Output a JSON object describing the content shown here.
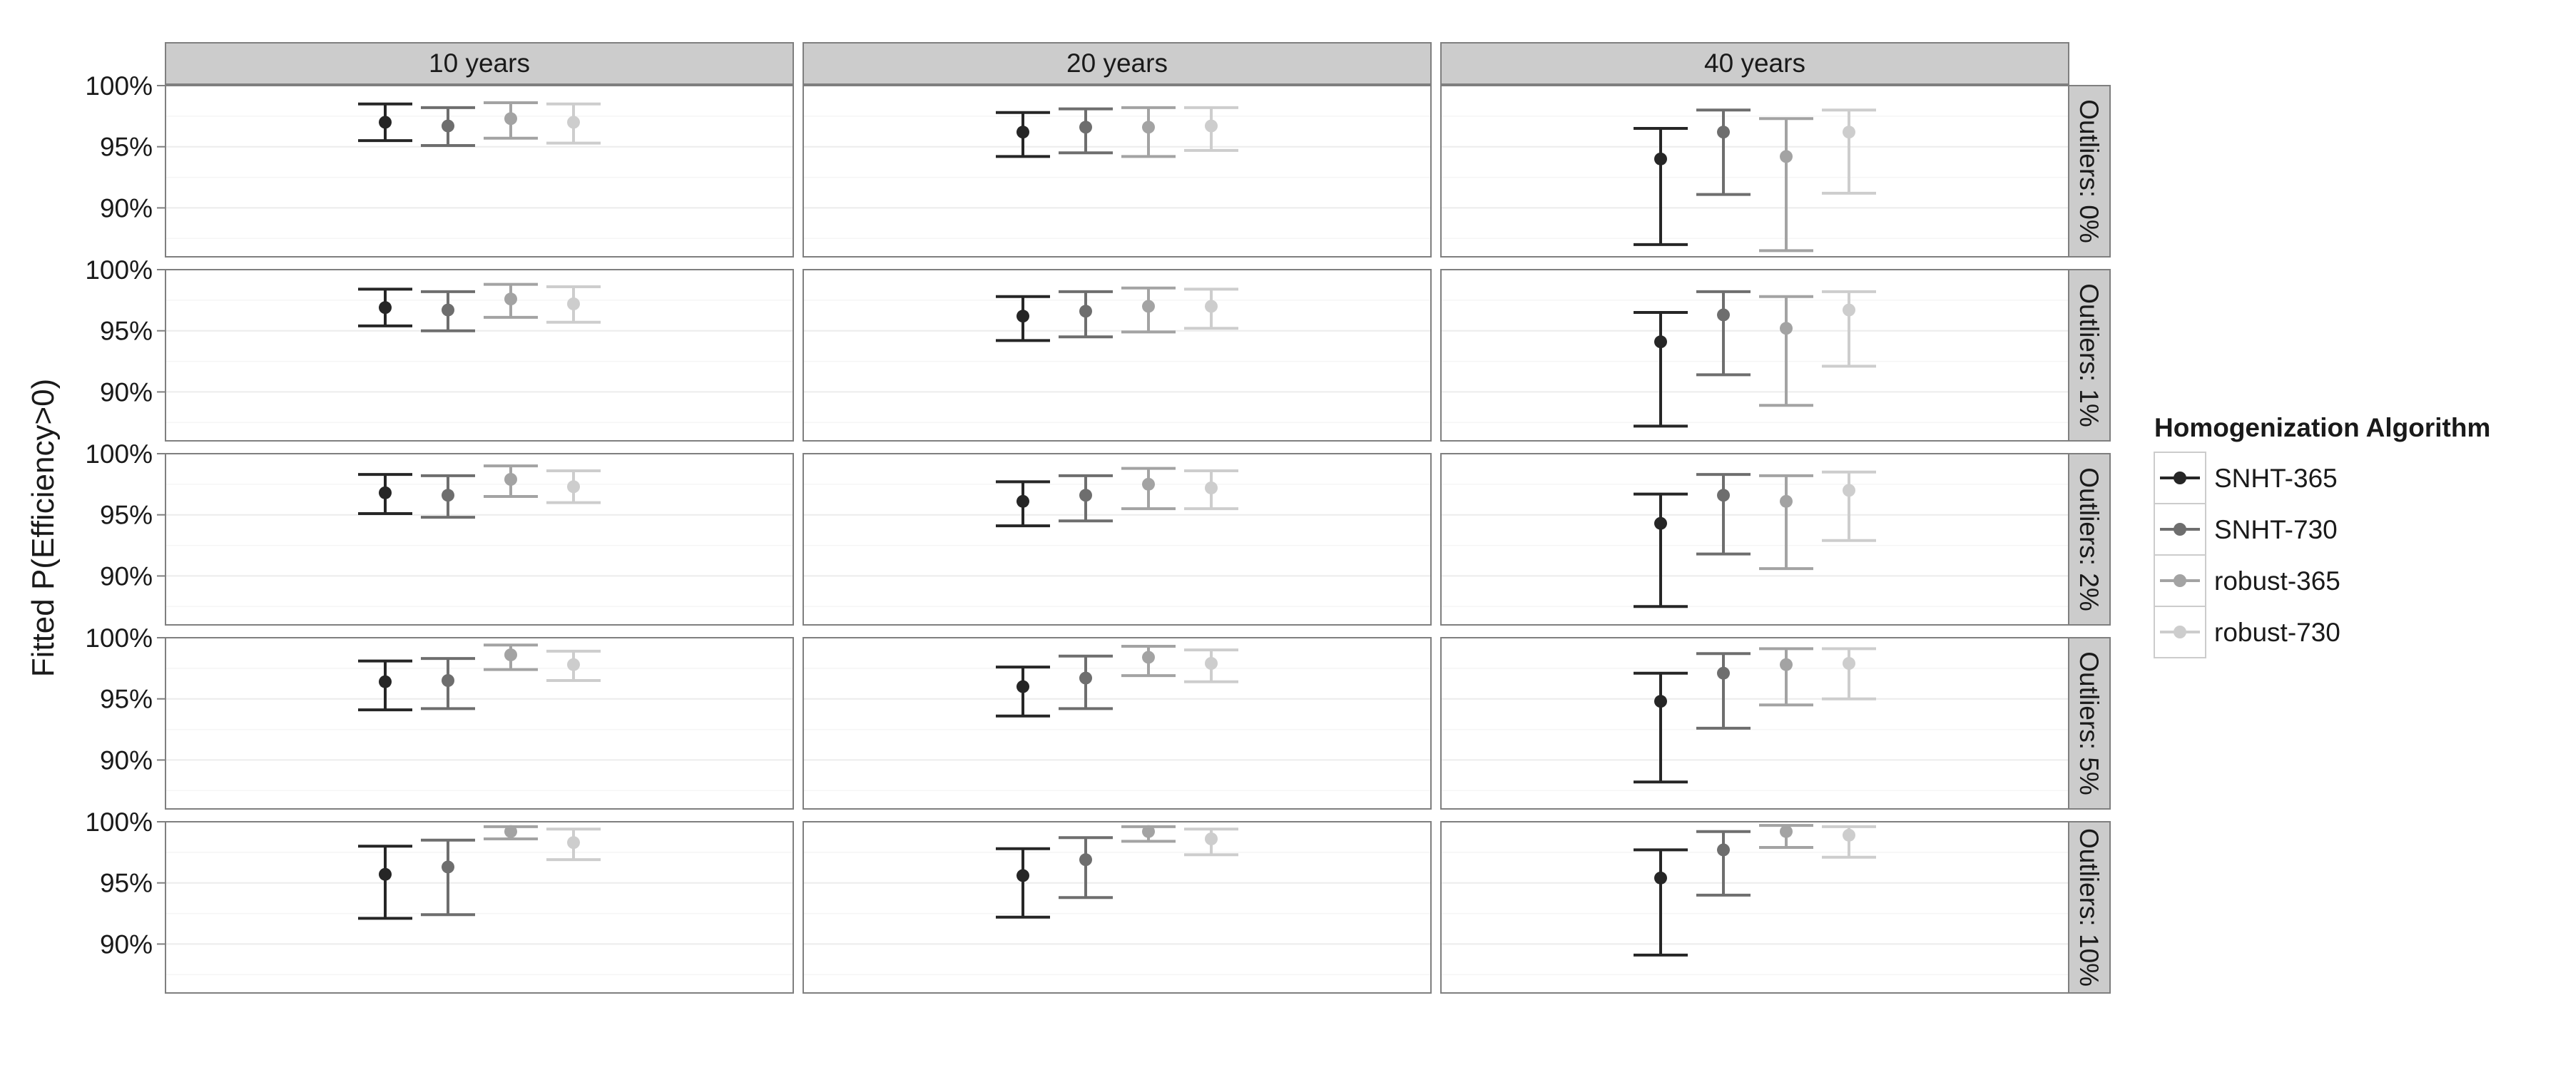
{
  "chart_data": {
    "type": "errorbar",
    "title": "",
    "ylabel": "Fitted P(Efficiency>0)",
    "xlabel": "",
    "ylim": [
      0.86,
      1.0
    ],
    "yticks": [
      0.9,
      0.95,
      1.0
    ],
    "ytick_labels": [
      "90%",
      "95%",
      "100%"
    ],
    "grid": true,
    "facet_columns": [
      "10 years",
      "20 years",
      "40 years"
    ],
    "facet_rows": [
      "Outliers: 0%",
      "Outliers: 1%",
      "Outliers: 2%",
      "Outliers: 5%",
      "Outliers: 10%"
    ],
    "legend": {
      "title": "Homogenization Algorithm",
      "position": "right"
    },
    "series": [
      {
        "name": "SNHT-365",
        "color": "#262626"
      },
      {
        "name": "SNHT-730",
        "color": "#6e6e6e"
      },
      {
        "name": "robust-365",
        "color": "#a3a3a3"
      },
      {
        "name": "robust-730",
        "color": "#cdcdcd"
      }
    ],
    "panels": [
      [
        [
          [
            0.97,
            0.955,
            0.985
          ],
          [
            0.967,
            0.951,
            0.982
          ],
          [
            0.973,
            0.957,
            0.986
          ],
          [
            0.97,
            0.953,
            0.985
          ]
        ],
        [
          [
            0.962,
            0.942,
            0.978
          ],
          [
            0.966,
            0.945,
            0.981
          ],
          [
            0.966,
            0.942,
            0.982
          ],
          [
            0.967,
            0.947,
            0.982
          ]
        ],
        [
          [
            0.94,
            0.87,
            0.965
          ],
          [
            0.962,
            0.911,
            0.98
          ],
          [
            0.942,
            0.865,
            0.973
          ],
          [
            0.962,
            0.912,
            0.98
          ]
        ]
      ],
      [
        [
          [
            0.969,
            0.954,
            0.984
          ],
          [
            0.967,
            0.95,
            0.982
          ],
          [
            0.976,
            0.961,
            0.988
          ],
          [
            0.972,
            0.957,
            0.986
          ]
        ],
        [
          [
            0.962,
            0.942,
            0.978
          ],
          [
            0.966,
            0.945,
            0.982
          ],
          [
            0.97,
            0.949,
            0.985
          ],
          [
            0.97,
            0.952,
            0.984
          ]
        ],
        [
          [
            0.941,
            0.872,
            0.965
          ],
          [
            0.963,
            0.914,
            0.982
          ],
          [
            0.952,
            0.889,
            0.978
          ],
          [
            0.967,
            0.921,
            0.982
          ]
        ]
      ],
      [
        [
          [
            0.968,
            0.951,
            0.983
          ],
          [
            0.966,
            0.948,
            0.982
          ],
          [
            0.979,
            0.965,
            0.99
          ],
          [
            0.973,
            0.96,
            0.986
          ]
        ],
        [
          [
            0.961,
            0.941,
            0.977
          ],
          [
            0.966,
            0.945,
            0.982
          ],
          [
            0.975,
            0.955,
            0.988
          ],
          [
            0.972,
            0.955,
            0.986
          ]
        ],
        [
          [
            0.943,
            0.875,
            0.967
          ],
          [
            0.966,
            0.918,
            0.983
          ],
          [
            0.961,
            0.906,
            0.982
          ],
          [
            0.97,
            0.929,
            0.985
          ]
        ]
      ],
      [
        [
          [
            0.964,
            0.941,
            0.981
          ],
          [
            0.965,
            0.942,
            0.983
          ],
          [
            0.986,
            0.974,
            0.994
          ],
          [
            0.978,
            0.965,
            0.989
          ]
        ],
        [
          [
            0.96,
            0.936,
            0.976
          ],
          [
            0.967,
            0.942,
            0.985
          ],
          [
            0.984,
            0.969,
            0.993
          ],
          [
            0.979,
            0.964,
            0.99
          ]
        ],
        [
          [
            0.948,
            0.882,
            0.971
          ],
          [
            0.971,
            0.926,
            0.987
          ],
          [
            0.978,
            0.945,
            0.991
          ],
          [
            0.979,
            0.95,
            0.991
          ]
        ]
      ],
      [
        [
          [
            0.957,
            0.921,
            0.98
          ],
          [
            0.963,
            0.924,
            0.985
          ],
          [
            0.992,
            0.986,
            0.996
          ],
          [
            0.983,
            0.969,
            0.994
          ]
        ],
        [
          [
            0.956,
            0.922,
            0.978
          ],
          [
            0.969,
            0.938,
            0.987
          ],
          [
            0.992,
            0.984,
            0.996
          ],
          [
            0.986,
            0.973,
            0.994
          ]
        ],
        [
          [
            0.954,
            0.891,
            0.977
          ],
          [
            0.977,
            0.94,
            0.992
          ],
          [
            0.992,
            0.979,
            0.997
          ],
          [
            0.989,
            0.971,
            0.996
          ]
        ]
      ]
    ]
  }
}
